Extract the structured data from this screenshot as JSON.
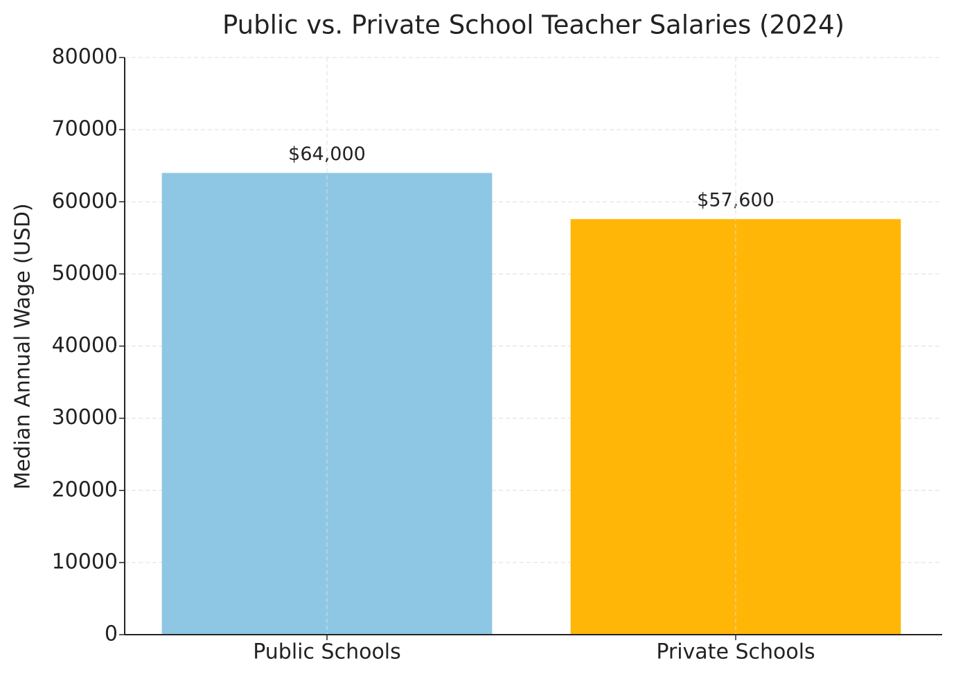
{
  "chart_data": {
    "type": "bar",
    "title": "Public vs. Private School Teacher Salaries (2024)",
    "y_label": "Median Annual Wage (USD)",
    "categories": [
      "Public Schools",
      "Private Schools"
    ],
    "values": [
      64000,
      57600
    ],
    "value_labels": [
      "$64,000",
      "$57,600"
    ],
    "colors": [
      "#8ec7e3",
      "#ffb606"
    ],
    "ylim": [
      0,
      80000
    ],
    "yticks": [
      0,
      10000,
      20000,
      30000,
      40000,
      50000,
      60000,
      70000,
      80000
    ],
    "grid": true
  }
}
